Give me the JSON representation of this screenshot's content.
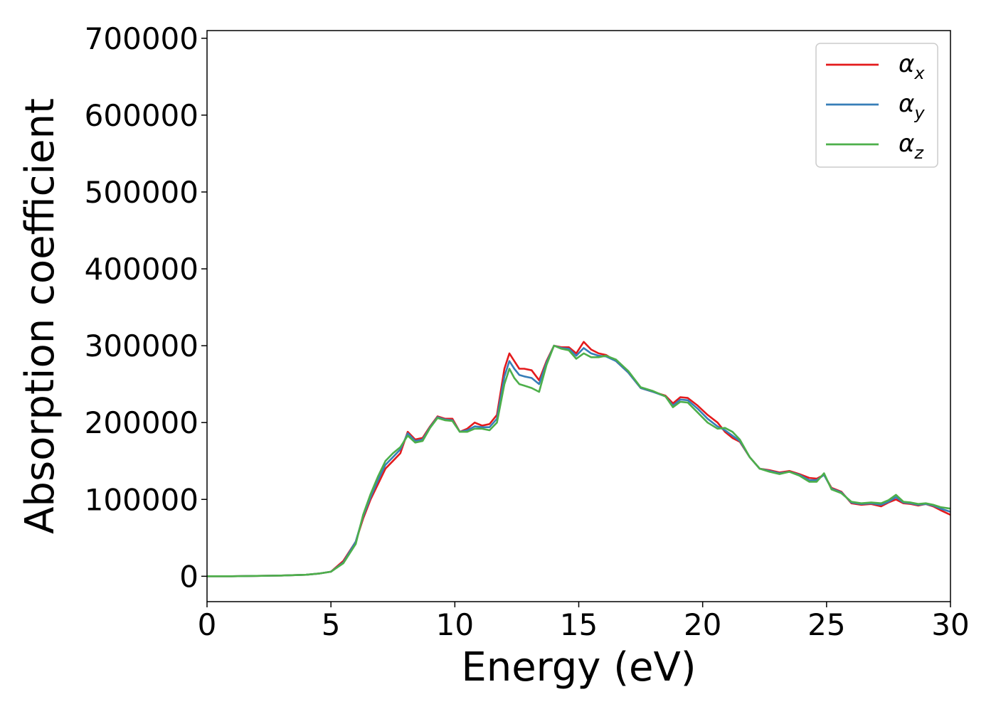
{
  "chart_data": {
    "type": "line",
    "title": "",
    "xlabel": "Energy (eV)",
    "ylabel": "Absorption coefficient",
    "xlim": [
      0,
      30
    ],
    "ylim": [
      -33000,
      710000
    ],
    "xticks": [
      "0",
      "5",
      "10",
      "15",
      "20",
      "25",
      "30"
    ],
    "yticks": [
      "0",
      "100000",
      "200000",
      "300000",
      "400000",
      "500000",
      "600000",
      "700000"
    ],
    "grid": false,
    "legend_position": "top-right",
    "x": [
      0,
      1,
      2,
      3,
      4,
      4.5,
      5,
      5.5,
      6,
      6.3,
      6.6,
      6.9,
      7.2,
      7.5,
      7.8,
      8.1,
      8.4,
      8.7,
      9,
      9.3,
      9.6,
      9.9,
      10.2,
      10.5,
      10.8,
      11.1,
      11.4,
      11.7,
      12.0,
      12.2,
      12.4,
      12.6,
      12.8,
      13.1,
      13.4,
      13.7,
      14.0,
      14.3,
      14.6,
      14.9,
      15.2,
      15.5,
      15.8,
      16.1,
      16.5,
      17.0,
      17.5,
      18.0,
      18.5,
      18.8,
      19.1,
      19.4,
      19.8,
      20.2,
      20.6,
      20.9,
      21.2,
      21.5,
      21.9,
      22.3,
      22.7,
      23.1,
      23.5,
      23.9,
      24.3,
      24.6,
      24.9,
      25.2,
      25.6,
      26.0,
      26.4,
      26.8,
      27.2,
      27.5,
      27.8,
      28.1,
      28.4,
      28.7,
      29.0,
      29.3,
      29.6,
      30.0
    ],
    "series": [
      {
        "name": "α",
        "subscript": "x",
        "color": "#e41a1c",
        "values": [
          0,
          0,
          500,
          1000,
          2000,
          3500,
          6000,
          20000,
          45000,
          75000,
          100000,
          120000,
          140000,
          150000,
          160000,
          188000,
          178000,
          180000,
          195000,
          208000,
          205000,
          205000,
          188000,
          192000,
          200000,
          196000,
          198000,
          210000,
          270000,
          290000,
          280000,
          270000,
          270000,
          268000,
          255000,
          280000,
          300000,
          298000,
          298000,
          290000,
          305000,
          295000,
          290000,
          288000,
          280000,
          265000,
          245000,
          240000,
          235000,
          225000,
          233000,
          232000,
          222000,
          210000,
          200000,
          188000,
          180000,
          175000,
          155000,
          140000,
          138000,
          135000,
          137000,
          133000,
          128000,
          127000,
          132000,
          115000,
          110000,
          95000,
          93000,
          94000,
          91000,
          96000,
          100000,
          95000,
          94000,
          92000,
          94000,
          91000,
          86000,
          80000
        ]
      },
      {
        "name": "α",
        "subscript": "y",
        "color": "#377eb8",
        "values": [
          0,
          0,
          500,
          1000,
          2000,
          3500,
          6000,
          18000,
          45000,
          78000,
          103000,
          125000,
          145000,
          155000,
          165000,
          186000,
          176000,
          178000,
          194000,
          207000,
          204000,
          203000,
          188000,
          190000,
          195000,
          194000,
          194000,
          205000,
          260000,
          280000,
          270000,
          262000,
          260000,
          258000,
          250000,
          278000,
          300000,
          297000,
          296000,
          287000,
          297000,
          290000,
          287000,
          286000,
          280000,
          265000,
          245000,
          240000,
          234000,
          222000,
          230000,
          229000,
          218000,
          205000,
          195000,
          190000,
          183000,
          176000,
          155000,
          140000,
          137000,
          134000,
          136000,
          132000,
          125000,
          125000,
          132000,
          114000,
          109000,
          96000,
          94000,
          95000,
          93000,
          97000,
          103000,
          96000,
          95000,
          93000,
          94000,
          92000,
          88000,
          84000
        ]
      },
      {
        "name": "α",
        "subscript": "z",
        "color": "#4daf4a",
        "values": [
          0,
          0,
          500,
          1000,
          2000,
          3500,
          6000,
          17000,
          42000,
          80000,
          107000,
          130000,
          150000,
          160000,
          168000,
          183000,
          174000,
          176000,
          193000,
          206000,
          203000,
          202000,
          188000,
          188000,
          192000,
          192000,
          190000,
          200000,
          250000,
          270000,
          258000,
          250000,
          248000,
          245000,
          240000,
          275000,
          300000,
          296000,
          294000,
          283000,
          290000,
          285000,
          285000,
          287000,
          282000,
          267000,
          246000,
          241000,
          234000,
          220000,
          227000,
          226000,
          213000,
          200000,
          192000,
          193000,
          188000,
          178000,
          155000,
          140000,
          136000,
          133000,
          136000,
          131000,
          123000,
          123000,
          134000,
          113000,
          108000,
          97000,
          95000,
          96000,
          95000,
          99000,
          106000,
          97000,
          96000,
          94000,
          95000,
          93000,
          90000,
          88000
        ]
      }
    ]
  }
}
